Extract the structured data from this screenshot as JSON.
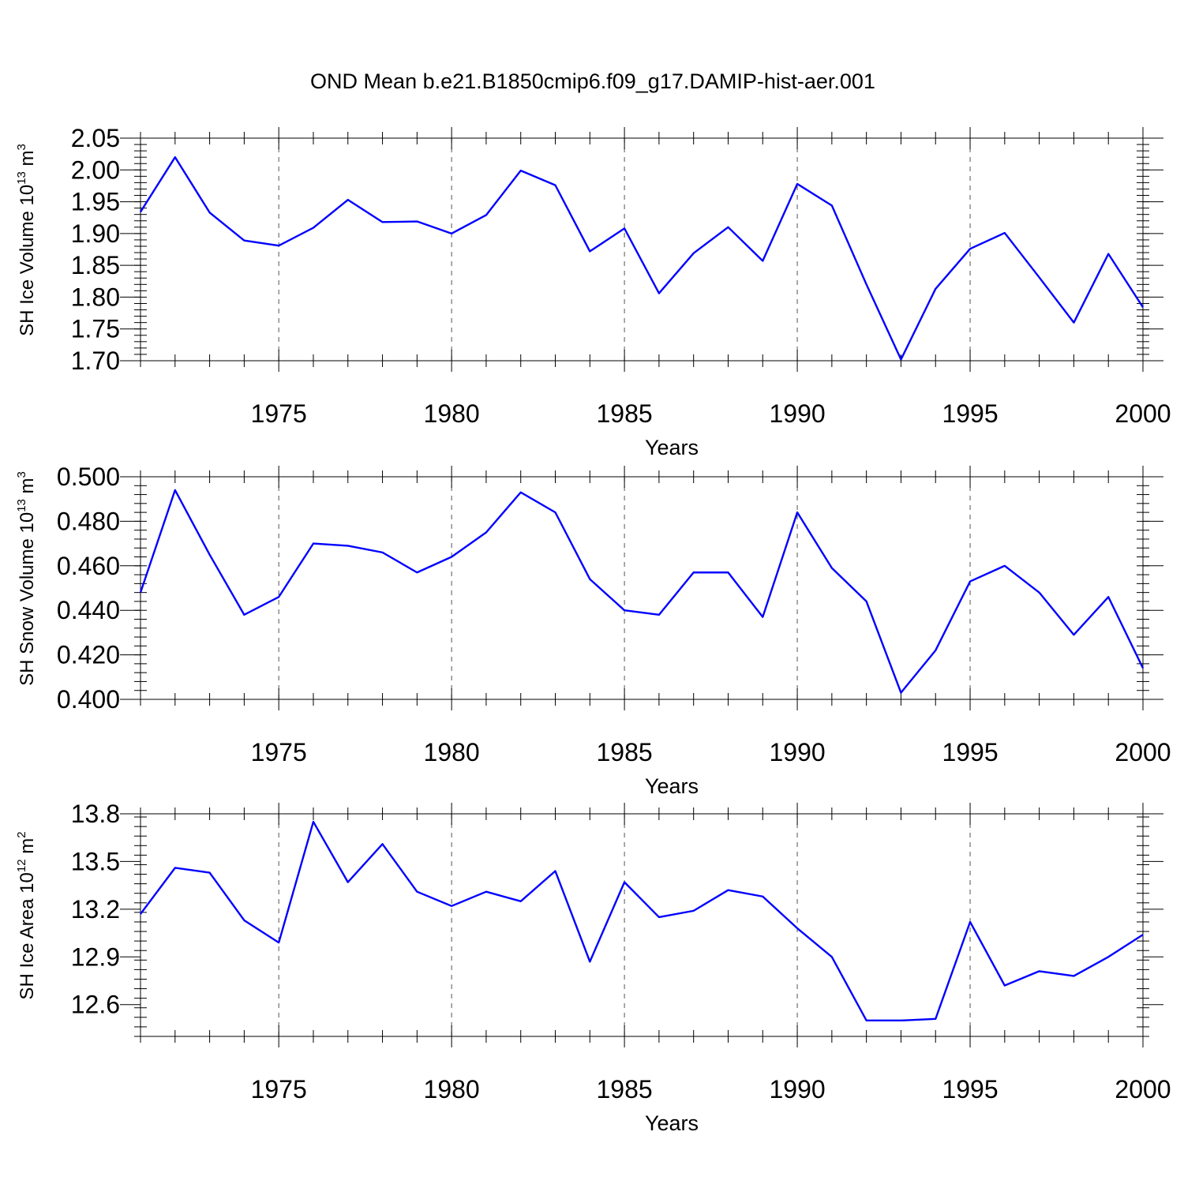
{
  "chart_data": {
    "title": "OND Mean b.e21.B1850cmip6.f09_g17.DAMIP-hist-aer.001",
    "line_color": "#0000ff",
    "panels": [
      {
        "type": "line",
        "ylabel": "SH Ice Volume 10",
        "ylabel_exp": "13",
        "ylabel_unit": " m",
        "ylabel_unit_exp": "3",
        "xlabel": "Years",
        "xlim": [
          1971,
          2000
        ],
        "ylim": [
          1.7,
          2.05
        ],
        "x_ticks": [
          "1975",
          "1980",
          "1985",
          "1990",
          "1995",
          "2000"
        ],
        "y_ticks": [
          "1.70",
          "1.75",
          "1.80",
          "1.85",
          "1.90",
          "1.95",
          "2.00",
          "2.05"
        ],
        "x": [
          1971,
          1972,
          1973,
          1974,
          1975,
          1976,
          1977,
          1978,
          1979,
          1980,
          1981,
          1982,
          1983,
          1984,
          1985,
          1986,
          1987,
          1988,
          1989,
          1990,
          1991,
          1992,
          1993,
          1994,
          1995,
          1996,
          1997,
          1998,
          1999,
          2000
        ],
        "values": [
          1.934,
          2.02,
          1.933,
          1.889,
          1.881,
          1.909,
          1.953,
          1.918,
          1.919,
          1.9,
          1.929,
          1.999,
          1.976,
          1.872,
          1.908,
          1.806,
          1.869,
          1.91,
          1.857,
          1.978,
          1.944,
          1.82,
          1.702,
          1.813,
          1.876,
          1.901,
          1.831,
          1.76,
          1.868,
          1.784
        ]
      },
      {
        "type": "line",
        "ylabel": "SH Snow Volume 10",
        "ylabel_exp": "13",
        "ylabel_unit": " m",
        "ylabel_unit_exp": "3",
        "xlabel": "Years",
        "xlim": [
          1971,
          2000
        ],
        "ylim": [
          0.4,
          0.5
        ],
        "x_ticks": [
          "1975",
          "1980",
          "1985",
          "1990",
          "1995",
          "2000"
        ],
        "y_ticks": [
          "0.400",
          "0.420",
          "0.440",
          "0.460",
          "0.480",
          "0.500"
        ],
        "x": [
          1971,
          1972,
          1973,
          1974,
          1975,
          1976,
          1977,
          1978,
          1979,
          1980,
          1981,
          1982,
          1983,
          1984,
          1985,
          1986,
          1987,
          1988,
          1989,
          1990,
          1991,
          1992,
          1993,
          1994,
          1995,
          1996,
          1997,
          1998,
          1999,
          2000
        ],
        "values": [
          0.448,
          0.494,
          0.465,
          0.438,
          0.446,
          0.47,
          0.469,
          0.466,
          0.457,
          0.464,
          0.475,
          0.493,
          0.484,
          0.454,
          0.44,
          0.438,
          0.457,
          0.457,
          0.437,
          0.484,
          0.459,
          0.444,
          0.403,
          0.422,
          0.453,
          0.46,
          0.448,
          0.429,
          0.446,
          0.414
        ]
      },
      {
        "type": "line",
        "ylabel": "SH Ice Area 10",
        "ylabel_exp": "12",
        "ylabel_unit": " m",
        "ylabel_unit_exp": "2",
        "xlabel": "Years",
        "xlim": [
          1971,
          2000
        ],
        "ylim": [
          12.4,
          13.8
        ],
        "x_ticks": [
          "1975",
          "1980",
          "1985",
          "1990",
          "1995",
          "2000"
        ],
        "y_ticks": [
          "12.6",
          "12.9",
          "13.2",
          "13.5",
          "13.8"
        ],
        "x": [
          1971,
          1972,
          1973,
          1974,
          1975,
          1976,
          1977,
          1978,
          1979,
          1980,
          1981,
          1982,
          1983,
          1984,
          1985,
          1986,
          1987,
          1988,
          1989,
          1990,
          1991,
          1992,
          1993,
          1994,
          1995,
          1996,
          1997,
          1998,
          1999,
          2000
        ],
        "values": [
          13.17,
          13.46,
          13.43,
          13.13,
          12.99,
          13.75,
          13.37,
          13.61,
          13.31,
          13.22,
          13.31,
          13.25,
          13.44,
          12.87,
          13.37,
          13.15,
          13.19,
          13.32,
          13.28,
          13.08,
          12.9,
          12.5,
          12.5,
          12.51,
          13.12,
          12.72,
          12.81,
          12.78,
          12.9,
          13.04
        ]
      }
    ]
  }
}
